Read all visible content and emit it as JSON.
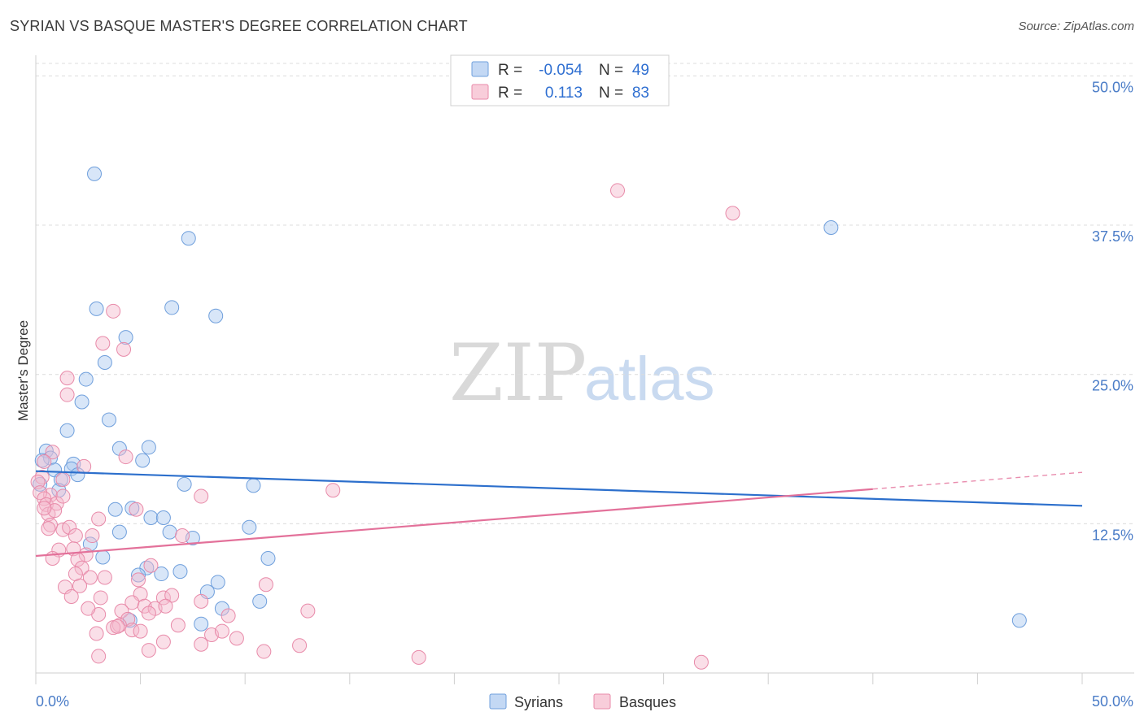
{
  "title": "SYRIAN VS BASQUE MASTER'S DEGREE CORRELATION CHART",
  "source": "Source: ZipAtlas.com",
  "watermark": {
    "zip": "ZIP",
    "atlas": "atlas"
  },
  "legend": {
    "rows": [
      {
        "r_label": "R =",
        "r_value": "-0.054",
        "n_label": "N =",
        "n_value": "49",
        "color": "#a9c8f0"
      },
      {
        "r_label": "R =",
        "r_value": "0.113",
        "n_label": "N =",
        "n_value": "83",
        "color": "#f5b8cb"
      }
    ]
  },
  "bottom_legend": [
    {
      "label": "Syrians",
      "color": "#a9c8f0"
    },
    {
      "label": "Basques",
      "color": "#f5b8cb"
    }
  ],
  "colors": {
    "syrians_fill": "#a9c8f0",
    "syrians_stroke": "#6f9fdc",
    "syrians_line": "#2c6fcc",
    "basques_fill": "#f5b8cb",
    "basques_stroke": "#e88aa9",
    "basques_line": "#e3719a"
  },
  "chart_data": {
    "type": "scatter",
    "title": "SYRIAN VS BASQUE MASTER'S DEGREE CORRELATION CHART",
    "xlabel": "",
    "ylabel": "Master's Degree",
    "xlim": [
      0,
      50
    ],
    "ylim": [
      0,
      52
    ],
    "x_tick_labels": [
      "0.0%",
      "50.0%"
    ],
    "y_ticks": [
      {
        "value": 12.5,
        "label": "12.5%"
      },
      {
        "value": 25.0,
        "label": "25.0%"
      },
      {
        "value": 37.5,
        "label": "37.5%"
      },
      {
        "value": 50.0,
        "label": "50.0%"
      }
    ],
    "grid": true,
    "legend_position": "top-center",
    "series": [
      {
        "name": "Syrians",
        "r": -0.054,
        "n": 49,
        "trend": {
          "x": [
            0,
            50
          ],
          "y": [
            16.9,
            14.0
          ]
        },
        "points": [
          [
            2.8,
            41.8
          ],
          [
            7.3,
            36.4
          ],
          [
            38.0,
            37.3
          ],
          [
            2.9,
            30.5
          ],
          [
            6.5,
            30.6
          ],
          [
            8.6,
            29.9
          ],
          [
            4.3,
            28.1
          ],
          [
            3.3,
            26.0
          ],
          [
            2.4,
            24.6
          ],
          [
            2.2,
            22.7
          ],
          [
            3.5,
            21.2
          ],
          [
            1.5,
            20.3
          ],
          [
            0.5,
            18.6
          ],
          [
            0.7,
            18.0
          ],
          [
            4.0,
            18.8
          ],
          [
            5.4,
            18.9
          ],
          [
            5.1,
            17.8
          ],
          [
            0.3,
            17.8
          ],
          [
            1.8,
            17.5
          ],
          [
            1.7,
            17.1
          ],
          [
            0.9,
            17.0
          ],
          [
            2.0,
            16.6
          ],
          [
            1.2,
            16.2
          ],
          [
            0.2,
            15.8
          ],
          [
            1.1,
            15.3
          ],
          [
            7.1,
            15.8
          ],
          [
            10.4,
            15.7
          ],
          [
            3.8,
            13.7
          ],
          [
            4.6,
            13.8
          ],
          [
            5.5,
            13.0
          ],
          [
            6.1,
            13.0
          ],
          [
            4.0,
            11.8
          ],
          [
            6.4,
            11.8
          ],
          [
            7.5,
            11.3
          ],
          [
            10.2,
            12.2
          ],
          [
            2.6,
            10.8
          ],
          [
            3.2,
            9.7
          ],
          [
            11.1,
            9.6
          ],
          [
            5.3,
            8.8
          ],
          [
            4.9,
            8.2
          ],
          [
            6.0,
            8.3
          ],
          [
            6.9,
            8.5
          ],
          [
            8.7,
            7.6
          ],
          [
            8.2,
            6.8
          ],
          [
            10.7,
            6.0
          ],
          [
            8.9,
            5.4
          ],
          [
            4.5,
            4.4
          ],
          [
            7.9,
            4.1
          ],
          [
            47.0,
            4.4
          ]
        ]
      },
      {
        "name": "Basques",
        "r": 0.113,
        "n": 83,
        "trend": {
          "x": [
            0,
            40
          ],
          "y": [
            9.8,
            15.4
          ]
        },
        "trend_dashed": {
          "x": [
            40,
            50
          ],
          "y": [
            15.4,
            16.8
          ]
        },
        "points": [
          [
            27.8,
            40.4
          ],
          [
            33.3,
            38.5
          ],
          [
            3.7,
            30.3
          ],
          [
            3.2,
            27.6
          ],
          [
            4.2,
            27.1
          ],
          [
            1.5,
            24.7
          ],
          [
            1.5,
            23.3
          ],
          [
            0.8,
            18.5
          ],
          [
            4.3,
            18.1
          ],
          [
            2.3,
            17.3
          ],
          [
            0.3,
            16.4
          ],
          [
            0.1,
            16.0
          ],
          [
            1.3,
            16.2
          ],
          [
            0.7,
            14.9
          ],
          [
            0.2,
            15.1
          ],
          [
            0.4,
            14.6
          ],
          [
            0.5,
            14.1
          ],
          [
            1.0,
            14.2
          ],
          [
            0.6,
            13.3
          ],
          [
            1.3,
            14.8
          ],
          [
            0.9,
            13.6
          ],
          [
            0.4,
            13.8
          ],
          [
            1.3,
            12.0
          ],
          [
            0.7,
            12.4
          ],
          [
            0.6,
            12.1
          ],
          [
            1.6,
            12.2
          ],
          [
            3.0,
            12.9
          ],
          [
            1.9,
            11.5
          ],
          [
            2.7,
            11.5
          ],
          [
            4.8,
            13.7
          ],
          [
            7.9,
            14.8
          ],
          [
            14.2,
            15.3
          ],
          [
            1.1,
            10.3
          ],
          [
            1.8,
            10.4
          ],
          [
            2.4,
            9.9
          ],
          [
            2.0,
            9.5
          ],
          [
            0.8,
            9.6
          ],
          [
            2.2,
            8.8
          ],
          [
            1.9,
            8.3
          ],
          [
            2.6,
            8.0
          ],
          [
            3.3,
            8.0
          ],
          [
            4.9,
            7.8
          ],
          [
            1.4,
            7.2
          ],
          [
            2.1,
            7.3
          ],
          [
            1.7,
            6.4
          ],
          [
            3.1,
            6.3
          ],
          [
            6.1,
            6.3
          ],
          [
            6.5,
            6.5
          ],
          [
            5.0,
            6.6
          ],
          [
            7.9,
            6.0
          ],
          [
            4.6,
            5.9
          ],
          [
            5.2,
            5.6
          ],
          [
            5.7,
            5.4
          ],
          [
            4.1,
            5.2
          ],
          [
            6.2,
            5.6
          ],
          [
            5.4,
            5.0
          ],
          [
            3.0,
            4.9
          ],
          [
            4.4,
            4.5
          ],
          [
            4.0,
            4.0
          ],
          [
            3.7,
            3.8
          ],
          [
            4.6,
            3.6
          ],
          [
            5.0,
            3.5
          ],
          [
            2.9,
            3.3
          ],
          [
            8.4,
            3.2
          ],
          [
            8.9,
            3.5
          ],
          [
            9.6,
            2.9
          ],
          [
            6.1,
            2.6
          ],
          [
            7.9,
            2.4
          ],
          [
            5.4,
            1.9
          ],
          [
            11.0,
            7.4
          ],
          [
            13.0,
            5.2
          ],
          [
            10.9,
            1.8
          ],
          [
            12.6,
            2.3
          ],
          [
            3.0,
            1.4
          ],
          [
            18.3,
            1.3
          ],
          [
            31.8,
            0.9
          ],
          [
            2.5,
            5.4
          ],
          [
            3.9,
            3.9
          ],
          [
            5.5,
            9.0
          ],
          [
            7.0,
            11.5
          ],
          [
            9.2,
            4.8
          ],
          [
            6.8,
            4.0
          ],
          [
            0.4,
            17.7
          ]
        ]
      }
    ]
  }
}
